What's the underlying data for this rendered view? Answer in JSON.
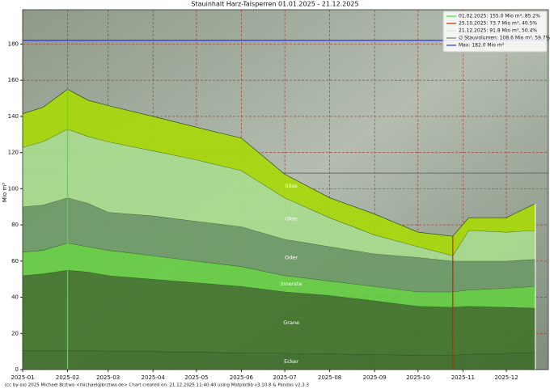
{
  "chart_data": {
    "type": "stacked-area",
    "title": "Stauinhalt Harz-Talsperren 01.01.2025 - 21.12.2025",
    "y_label": "Mio m³",
    "footer": "(cc by-sa) 2025 Michael Brztwa <michael@brztwa.de>   Chart created on: 21.12.2025 11:40:40 using Matplotlib v3.10.8 & Pandas v2.3.3",
    "x": [
      "2025-01-01",
      "2025-01-15",
      "2025-02-01",
      "2025-02-15",
      "2025-03-01",
      "2025-04-01",
      "2025-05-01",
      "2025-06-01",
      "2025-07-01",
      "2025-08-01",
      "2025-09-01",
      "2025-10-01",
      "2025-10-25",
      "2025-11-05",
      "2025-12-01",
      "2025-12-21"
    ],
    "series": [
      {
        "name": "Ecker",
        "color": "#3f6f2c",
        "values": [
          10.5,
          10.5,
          10.5,
          10.5,
          10.3,
          10,
          9.6,
          9.3,
          9,
          8.7,
          8.3,
          8,
          7.9,
          8.5,
          9,
          9.5
        ]
      },
      {
        "name": "Grane",
        "color": "#44752e",
        "values": [
          41.5,
          42.5,
          44.5,
          43.5,
          41.7,
          40,
          38.4,
          36.7,
          34,
          32.3,
          29.7,
          27,
          26.6,
          26.5,
          25.5,
          24.5
        ]
      },
      {
        "name": "Innerste",
        "color": "#66cc44",
        "values": [
          13,
          13,
          15,
          14,
          14,
          13,
          12,
          11,
          9,
          8,
          8,
          8,
          8.5,
          9,
          10.5,
          12
        ]
      },
      {
        "name": "Oder",
        "color": "#6e9a68",
        "values": [
          25,
          25,
          25,
          24,
          21,
          22,
          22,
          22,
          20,
          19,
          18,
          19,
          17,
          16,
          15,
          15
        ]
      },
      {
        "name": "Oker",
        "color": "#a9dc8e",
        "values": [
          33,
          35,
          38,
          37,
          39,
          36,
          34,
          31,
          23,
          16,
          10.5,
          6,
          3,
          17,
          16,
          16
        ]
      },
      {
        "name": "Söse",
        "color": "#a8d80c",
        "values": [
          18.5,
          19,
          22,
          20,
          20,
          19,
          18,
          18,
          13,
          11,
          11.5,
          8,
          10.7,
          7,
          8,
          14.8
        ]
      }
    ],
    "annotations": [
      {
        "label": "01.02.2025: 155.0 Mio m³, 85.2%",
        "kind": "vline",
        "x": "2025-02-01",
        "value": 155,
        "color": "#33ee33"
      },
      {
        "label": "25.10.2025: 73.7 Mio m³, 40.5%",
        "kind": "vline",
        "x": "2025-10-25",
        "value": 73.7,
        "color": "#cc2200"
      },
      {
        "label": "21.12.2025: 91.8 Mio m³, 50.4%",
        "kind": "vline",
        "x": "2025-12-21",
        "value": 91.8,
        "color": "#f4f4f4"
      },
      {
        "label": "∅ Stauvolumen: 108.6 Mio m³, 59.7%",
        "kind": "hline",
        "value": 108.6,
        "color": "#777777"
      },
      {
        "label": "Max: 182.0 Mio m³",
        "kind": "hline",
        "value": 182,
        "color": "#2233ee"
      }
    ],
    "xlim": [
      "2025-01-01",
      "2025-12-30"
    ],
    "xticks": [
      "2025-01",
      "2025-02",
      "2025-03",
      "2025-04",
      "2025-05",
      "2025-06",
      "2025-07",
      "2025-08",
      "2025-09",
      "2025-10",
      "2025-11",
      "2025-12"
    ],
    "ylim": [
      0,
      199
    ],
    "yticks": [
      0,
      20,
      40,
      60,
      80,
      100,
      120,
      140,
      160,
      180
    ],
    "grid": true
  }
}
